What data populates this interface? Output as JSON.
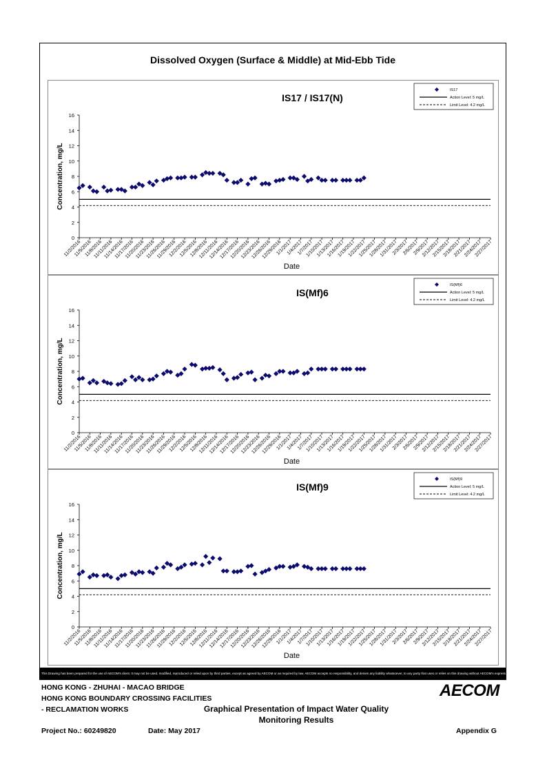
{
  "page": {
    "title": "Dissolved Oxygen (Surface & Middle) at Mid-Ebb Tide",
    "disclaimer": "This Drawing has been prepared for the use of AECOM's client. It may not be used, modified, reproduced or relied upon by third parties, except as agreed by AECOM or as required by law. AECOM accepts no responsibility, and denies any liability whatsoever, to any party that uses or relies on this drawing without AECOM's express written consent."
  },
  "footer": {
    "line1": "HONG KONG - ZHUHAI - MACAO BRIDGE",
    "line2": "HONG KONG BOUNDARY CROSSING FACILITIES",
    "line3": "- RECLAMATION WORKS",
    "report_title_1": "Graphical Presentation of Impact Water Quality",
    "report_title_2": "Monitoring Results",
    "project": "Project No.: 60249820",
    "date": "Date: May 2017",
    "appendix": "Appendix G",
    "logo": "AECOM"
  },
  "chart_data": [
    {
      "type": "scatter",
      "title": "IS17 / IS17(N)",
      "xlabel": "Date",
      "ylabel": "Concentration, mg/L",
      "ylim": [
        0,
        16
      ],
      "yticks": [
        0,
        2,
        4,
        6,
        8,
        10,
        12,
        14,
        16
      ],
      "xticks": [
        "11/2/2016",
        "11/5/2016",
        "11/8/2016",
        "11/11/2016",
        "11/14/2016",
        "11/17/2016",
        "11/20/2016",
        "11/23/2016",
        "11/26/2016",
        "11/29/2016",
        "12/2/2016",
        "12/5/2016",
        "12/8/2016",
        "12/11/2016",
        "12/14/2016",
        "12/17/2016",
        "12/20/2016",
        "12/23/2016",
        "12/26/2016",
        "12/29/2016",
        "1/1/2017",
        "1/4/2017",
        "1/7/2017",
        "1/10/2017",
        "1/13/2017",
        "1/16/2017",
        "1/19/2017",
        "1/22/2017",
        "1/25/2017",
        "1/28/2017",
        "1/31/2017",
        "2/3/2017",
        "2/6/2017",
        "2/9/2017",
        "2/12/2017",
        "2/15/2017",
        "2/18/2017",
        "2/21/2017",
        "2/24/2017",
        "2/27/2017"
      ],
      "legend": [
        "IS17",
        "Action Level: 5 mg/L",
        "Limit Level: 4.2 mg/L"
      ],
      "action_level": 5,
      "limit_level": 4.2,
      "series": [
        {
          "name": "IS17",
          "x": [
            0,
            1,
            3,
            4,
            5,
            7,
            8,
            9,
            11,
            12,
            13,
            15,
            16,
            17,
            18,
            20,
            21,
            22,
            24,
            25,
            26,
            28,
            29,
            30,
            32,
            33,
            35,
            36,
            37,
            38,
            40,
            41,
            42,
            44,
            45,
            46,
            48,
            49,
            50,
            52,
            53,
            54,
            56,
            57,
            58,
            60,
            61,
            62,
            64,
            65,
            66,
            68,
            69,
            70,
            72,
            73,
            75,
            76,
            77,
            79,
            80,
            81
          ],
          "y": [
            6.5,
            6.8,
            6.6,
            6.1,
            6.0,
            6.6,
            6.1,
            6.2,
            6.3,
            6.3,
            6.1,
            6.6,
            6.6,
            7.0,
            6.8,
            7.2,
            6.9,
            7.4,
            7.5,
            7.7,
            7.8,
            7.8,
            7.8,
            7.9,
            7.9,
            7.9,
            8.2,
            8.5,
            8.4,
            8.4,
            8.4,
            8.2,
            7.5,
            7.2,
            7.2,
            7.5,
            7.0,
            7.7,
            7.8,
            7.0,
            7.1,
            7.0,
            7.4,
            7.5,
            7.6,
            7.8,
            7.8,
            7.6,
            8.0,
            7.4,
            7.6,
            7.8,
            7.5,
            7.5,
            7.5,
            7.5,
            7.5,
            7.5,
            7.5,
            7.5,
            7.5,
            7.8
          ]
        }
      ]
    },
    {
      "type": "scatter",
      "title": "IS(Mf)6",
      "xlabel": "Date",
      "ylabel": "Concentration, mg/L",
      "ylim": [
        0,
        16
      ],
      "yticks": [
        0,
        2,
        4,
        6,
        8,
        10,
        12,
        14,
        16
      ],
      "xticks": [
        "11/2/2016",
        "11/5/2016",
        "11/8/2016",
        "11/11/2016",
        "11/14/2016",
        "11/17/2016",
        "11/20/2016",
        "11/23/2016",
        "11/26/2016",
        "11/29/2016",
        "12/2/2016",
        "12/5/2016",
        "12/8/2016",
        "12/11/2016",
        "12/14/2016",
        "12/17/2016",
        "12/20/2016",
        "12/23/2016",
        "12/26/2016",
        "12/29/2016",
        "1/1/2017",
        "1/4/2017",
        "1/7/2017",
        "1/10/2017",
        "1/13/2017",
        "1/16/2017",
        "1/19/2017",
        "1/22/2017",
        "1/25/2017",
        "1/28/2017",
        "1/31/2017",
        "2/3/2017",
        "2/6/2017",
        "2/9/2017",
        "2/12/2017",
        "2/15/2017",
        "2/18/2017",
        "2/21/2017",
        "2/24/2017",
        "2/27/2017"
      ],
      "legend": [
        "IS(Mf)6",
        "Action Level: 5 mg/L",
        "Limit Level: 4.2 mg/L"
      ],
      "action_level": 5,
      "limit_level": 4.2,
      "series": [
        {
          "name": "IS(Mf)6",
          "x": [
            0,
            1,
            3,
            4,
            5,
            7,
            8,
            9,
            11,
            12,
            13,
            15,
            16,
            17,
            18,
            20,
            21,
            22,
            24,
            25,
            26,
            28,
            29,
            30,
            32,
            33,
            35,
            36,
            37,
            38,
            40,
            41,
            42,
            44,
            45,
            46,
            48,
            49,
            50,
            52,
            53,
            54,
            56,
            57,
            58,
            60,
            61,
            62,
            64,
            65,
            66,
            68,
            69,
            70,
            72,
            73,
            75,
            76,
            77,
            79,
            80,
            81
          ],
          "y": [
            7.0,
            7.1,
            6.5,
            6.8,
            6.5,
            6.7,
            6.5,
            6.4,
            6.3,
            6.4,
            6.8,
            7.3,
            6.9,
            7.2,
            6.9,
            6.9,
            7.0,
            7.4,
            7.7,
            8.0,
            7.9,
            7.5,
            7.7,
            8.3,
            8.9,
            8.8,
            8.3,
            8.4,
            8.4,
            8.5,
            8.2,
            7.7,
            6.9,
            7.1,
            7.2,
            7.6,
            7.8,
            7.9,
            6.9,
            7.1,
            7.5,
            7.4,
            7.7,
            8.0,
            8.0,
            7.8,
            7.8,
            8.0,
            7.7,
            7.8,
            8.3,
            8.3,
            8.3,
            8.3,
            8.3,
            8.3,
            8.3,
            8.3,
            8.3,
            8.3,
            8.3,
            8.3
          ]
        }
      ]
    },
    {
      "type": "scatter",
      "title": "IS(Mf)9",
      "xlabel": "Date",
      "ylabel": "Concentration, mg/L",
      "ylim": [
        0,
        16
      ],
      "yticks": [
        0,
        2,
        4,
        6,
        8,
        10,
        12,
        14,
        16
      ],
      "xticks": [
        "11/2/2016",
        "11/5/2016",
        "11/8/2016",
        "11/11/2016",
        "11/14/2016",
        "11/17/2016",
        "11/20/2016",
        "11/23/2016",
        "11/26/2016",
        "11/29/2016",
        "12/2/2016",
        "12/5/2016",
        "12/8/2016",
        "12/11/2016",
        "12/14/2016",
        "12/17/2016",
        "12/20/2016",
        "12/23/2016",
        "12/26/2016",
        "12/29/2016",
        "1/1/2017",
        "1/4/2017",
        "1/7/2017",
        "1/10/2017",
        "1/13/2017",
        "1/16/2017",
        "1/19/2017",
        "1/22/2017",
        "1/25/2017",
        "1/28/2017",
        "1/31/2017",
        "2/3/2017",
        "2/6/2017",
        "2/9/2017",
        "2/12/2017",
        "2/15/2017",
        "2/18/2017",
        "2/21/2017",
        "2/24/2017",
        "2/27/2017"
      ],
      "legend": [
        "IS(Mf)9",
        "Action Level: 5 mg/L",
        "Limit Level: 4.2 mg/L"
      ],
      "action_level": 5,
      "limit_level": 4.2,
      "series": [
        {
          "name": "IS(Mf)9",
          "x": [
            0,
            1,
            3,
            4,
            5,
            7,
            8,
            9,
            11,
            12,
            13,
            15,
            16,
            17,
            18,
            20,
            21,
            22,
            24,
            25,
            26,
            28,
            29,
            30,
            32,
            33,
            35,
            36,
            37,
            38,
            40,
            41,
            42,
            44,
            45,
            46,
            48,
            49,
            50,
            52,
            53,
            54,
            56,
            57,
            58,
            60,
            61,
            62,
            64,
            65,
            66,
            68,
            69,
            70,
            72,
            73,
            75,
            76,
            77,
            79,
            80,
            81
          ],
          "y": [
            6.9,
            7.2,
            6.5,
            6.8,
            6.7,
            6.7,
            6.8,
            6.5,
            6.3,
            6.7,
            6.8,
            7.1,
            6.9,
            7.2,
            7.1,
            7.2,
            7.0,
            7.7,
            7.8,
            8.3,
            8.1,
            7.6,
            7.8,
            8.1,
            8.2,
            8.3,
            8.1,
            9.2,
            8.4,
            9.0,
            8.9,
            7.3,
            7.3,
            7.2,
            7.2,
            7.3,
            7.9,
            8.0,
            6.9,
            7.1,
            7.3,
            7.5,
            7.7,
            7.9,
            7.9,
            7.8,
            7.9,
            8.1,
            7.9,
            7.8,
            7.6,
            7.6,
            7.6,
            7.6,
            7.6,
            7.6,
            7.6,
            7.6,
            7.6,
            7.6,
            7.6,
            7.6
          ]
        }
      ]
    }
  ]
}
